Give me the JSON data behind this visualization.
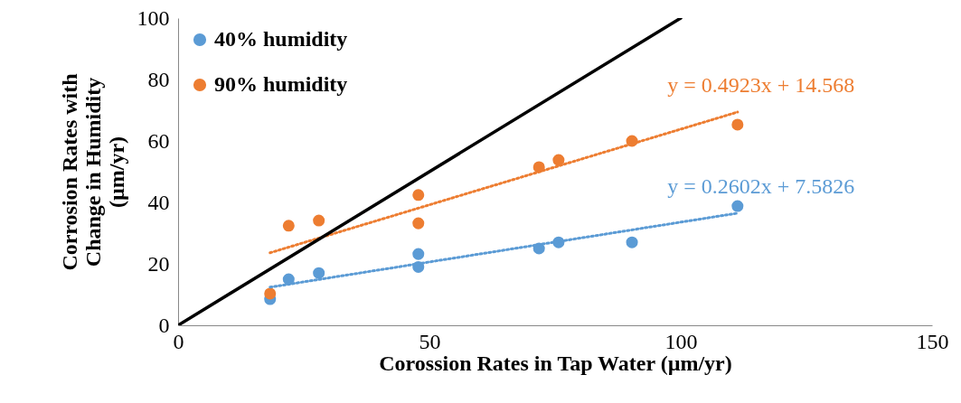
{
  "chart_data": {
    "type": "scatter",
    "xlabel": "Corossion Rates in Tap Water (µm/yr)",
    "ylabel": "Corrosion Rates with Change in Humidity (µm/yr)",
    "xlim": [
      0,
      150
    ],
    "xticks": [
      0,
      50,
      100,
      150
    ],
    "ylim": [
      0,
      100
    ],
    "yticks": [
      0,
      20,
      40,
      60,
      80,
      100
    ],
    "grid": false,
    "legend": "top left",
    "series": [
      {
        "name": "40% humidity",
        "color": "#5b9bd5",
        "marker": "circle",
        "x": [
          18.3,
          22,
          28,
          47.8,
          47.8,
          71.8,
          75.7,
          90.3,
          111.3
        ],
        "values": [
          8.5,
          15,
          17,
          23.2,
          19,
          25,
          27,
          27,
          38.8
        ]
      },
      {
        "name": "90% humidity",
        "color": "#ed7d31",
        "marker": "circle",
        "x": [
          18.3,
          22,
          28,
          47.8,
          47.8,
          71.8,
          75.7,
          90.3,
          111.3
        ],
        "values": [
          10.3,
          32.4,
          34.1,
          42.4,
          33.2,
          51.5,
          53.8,
          60,
          65.3
        ]
      },
      {
        "type": "line",
        "line_style": "dotted",
        "marker": "none",
        "color": "#5b9bd5",
        "x": [
          18.3,
          111.3
        ],
        "values": [
          12.4,
          36.5
        ]
      },
      {
        "type": "line",
        "line_style": "dotted",
        "marker": "none",
        "color": "#ed7d31",
        "x": [
          18.3,
          111.3
        ],
        "values": [
          23.6,
          69.4
        ]
      },
      {
        "type": "line",
        "line_style": "solid",
        "marker": "none",
        "color": "#000000",
        "x": [
          0,
          100
        ],
        "values": [
          0,
          100
        ]
      }
    ],
    "annotations": [
      "y = 0.2602x + 7.5826",
      "y = 0.4923x + 14.568"
    ]
  }
}
